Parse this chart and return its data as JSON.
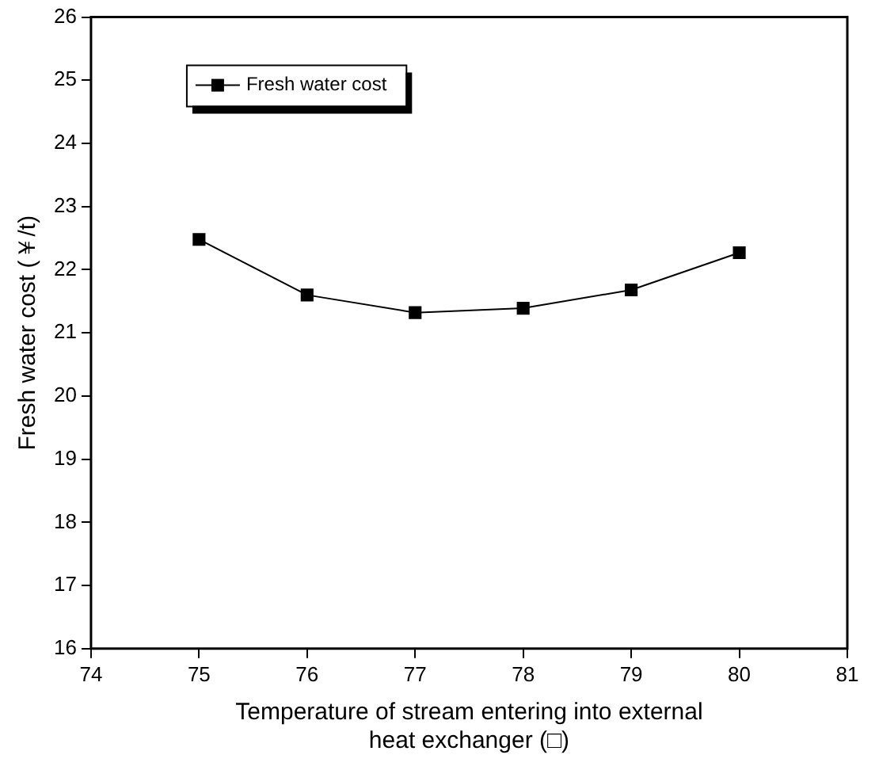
{
  "chart_data": {
    "type": "line",
    "xlabel": "Temperature of stream entering into external heat exchanger (□)",
    "ylabel": "Fresh water cost (￥/t)",
    "x": [
      75,
      76,
      77,
      78,
      79,
      80
    ],
    "series": [
      {
        "name": "Fresh water cost",
        "color": "#000000",
        "values": [
          22.48,
          21.6,
          21.32,
          21.39,
          21.68,
          22.27
        ]
      }
    ],
    "xlim": [
      74,
      81
    ],
    "xticks": [
      74,
      75,
      76,
      77,
      78,
      79,
      80,
      81
    ],
    "ylim": [
      16,
      26
    ],
    "yticks": [
      16,
      17,
      18,
      19,
      20,
      21,
      22,
      23,
      24,
      25,
      26
    ],
    "legend": "top left",
    "marker": "square",
    "line_style": "solid",
    "grid": false
  }
}
